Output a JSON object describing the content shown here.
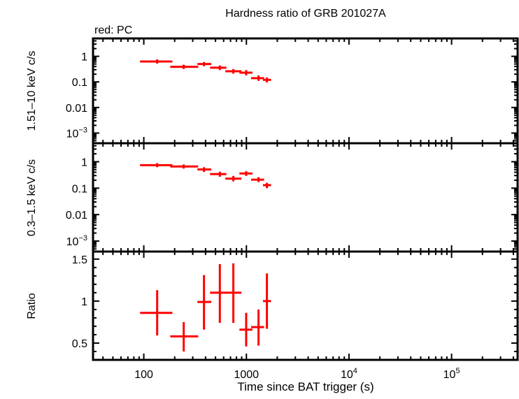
{
  "chart_data": {
    "title": "Hardness ratio of GRB 201027A",
    "subtitle": "red: PC",
    "xlabel": "Time since BAT trigger (s)",
    "xscale": "log",
    "xlim": [
      32,
      440000
    ],
    "xticks": [
      {
        "v": 100,
        "label": "100"
      },
      {
        "v": 1000,
        "label": "1000"
      },
      {
        "v": 10000,
        "label": "10",
        "exp": "4"
      },
      {
        "v": 100000,
        "label": "10",
        "exp": "5"
      }
    ],
    "series_color": "#ff0000",
    "x": [
      135,
      245,
      386,
      551,
      746,
      995,
      1313,
      1585
    ],
    "x_lo": [
      92,
      181,
      333,
      442,
      623,
      855,
      1111,
      1450
    ],
    "x_hi": [
      190,
      339,
      455,
      638,
      896,
      1145,
      1488,
      1740
    ],
    "panels": [
      {
        "type": "scatter",
        "ylabel": "1.51–10 keV c/s",
        "yscale": "log",
        "ylim": [
          0.0004,
          5
        ],
        "yticks": [
          {
            "v": 1,
            "label": "1"
          },
          {
            "v": 0.1,
            "label": "0.1"
          },
          {
            "v": 0.01,
            "label": "0.01"
          },
          {
            "v": 0.001,
            "label": "10",
            "exp": "−3"
          }
        ],
        "y": [
          0.63,
          0.39,
          0.5,
          0.36,
          0.26,
          0.23,
          0.14,
          0.12
        ],
        "y_lo": [
          0.52,
          0.32,
          0.41,
          0.29,
          0.21,
          0.18,
          0.11,
          0.095
        ],
        "y_hi": [
          0.76,
          0.47,
          0.6,
          0.44,
          0.32,
          0.29,
          0.18,
          0.15
        ]
      },
      {
        "type": "scatter",
        "ylabel": "0.3–1.5 keV c/s",
        "yscale": "log",
        "ylim": [
          0.0004,
          5
        ],
        "yticks": [
          {
            "v": 1,
            "label": "1"
          },
          {
            "v": 0.1,
            "label": "0.1"
          },
          {
            "v": 0.01,
            "label": "0.01"
          },
          {
            "v": 0.001,
            "label": "10",
            "exp": "−3"
          }
        ],
        "y": [
          0.74,
          0.66,
          0.51,
          0.34,
          0.23,
          0.36,
          0.21,
          0.13
        ],
        "y_lo": [
          0.62,
          0.55,
          0.41,
          0.27,
          0.18,
          0.29,
          0.17,
          0.1
        ],
        "y_hi": [
          0.88,
          0.79,
          0.62,
          0.42,
          0.29,
          0.44,
          0.26,
          0.16
        ]
      },
      {
        "type": "scatter",
        "ylabel": "Ratio",
        "yscale": "linear",
        "ylim": [
          0.3,
          1.59
        ],
        "yticks": [
          {
            "v": 1.5,
            "label": "1.5"
          },
          {
            "v": 1,
            "label": "1"
          },
          {
            "v": 0.5,
            "label": "0.5"
          }
        ],
        "y": [
          0.86,
          0.58,
          0.99,
          1.1,
          1.1,
          0.66,
          0.69,
          1.0
        ],
        "y_lo": [
          0.59,
          0.4,
          0.66,
          0.74,
          0.74,
          0.46,
          0.47,
          0.67
        ],
        "y_hi": [
          1.13,
          0.75,
          1.31,
          1.44,
          1.45,
          0.86,
          0.9,
          1.33
        ]
      }
    ]
  }
}
